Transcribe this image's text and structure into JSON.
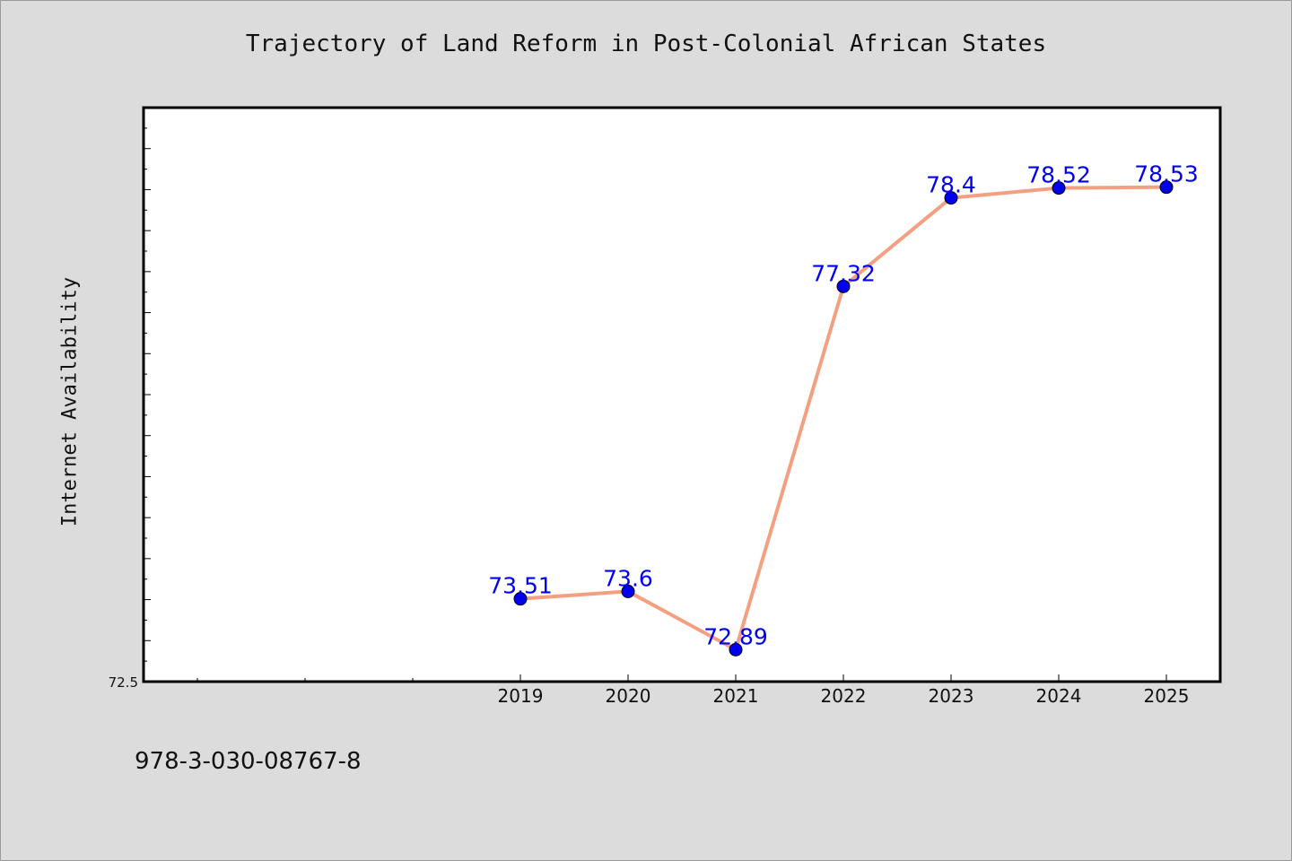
{
  "chart_data": {
    "type": "line",
    "title": "Trajectory of Land Reform in Post-Colonial African States",
    "xlabel": "",
    "ylabel": "Internet Availability",
    "categories": [
      "2019",
      "2020",
      "2021",
      "2022",
      "2023",
      "2024",
      "2025"
    ],
    "series": [
      {
        "values": [
          73.51,
          73.6,
          72.89,
          77.32,
          78.4,
          78.52,
          78.53
        ]
      }
    ],
    "data_labels": [
      "73.51",
      "73.6",
      "72.89",
      "77.32",
      "78.4",
      "78.52",
      "78.53"
    ],
    "y_tick_labels": [
      "72.5"
    ],
    "ylim": [
      72.5,
      79.5
    ],
    "grid": false,
    "legend": "none",
    "colors": {
      "line": "#f4a080",
      "marker": "#0000ee",
      "data_label": "#0000ee",
      "plot_background": "#ffffff",
      "page_background": "#dcdcdc"
    }
  },
  "footer": {
    "id_text": "978-3-030-08767-8"
  }
}
